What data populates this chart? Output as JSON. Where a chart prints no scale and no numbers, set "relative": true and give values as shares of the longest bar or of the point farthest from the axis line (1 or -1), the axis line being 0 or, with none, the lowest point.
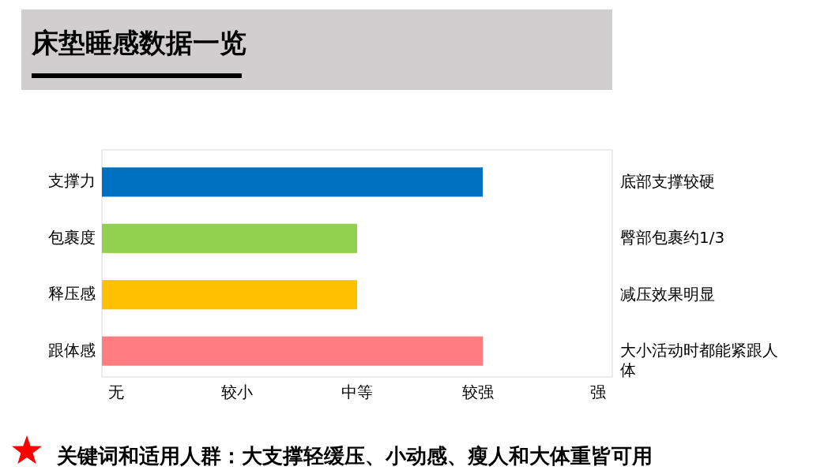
{
  "chart_data": {
    "type": "bar",
    "orientation": "horizontal",
    "relative": true,
    "title": "床垫睡感数据一览",
    "categories": [
      "支撑力",
      "包裹度",
      "释压感",
      "跟体感"
    ],
    "values": [
      1,
      0.67,
      0.67,
      1
    ],
    "colors": [
      "#0070c0",
      "#92d050",
      "#ffc000",
      "#ff7c80"
    ],
    "grid": false,
    "annotations": [
      "底部支撑较硬",
      "臀部包裹约1/3",
      "减压效果明显",
      "大小活动时都能紧跟人体",
      "无",
      "较小",
      "中等",
      "较强",
      "强",
      "关键词和适用人群：大支撑轻缓压、小动感、瘦人和大体重皆可用"
    ]
  }
}
